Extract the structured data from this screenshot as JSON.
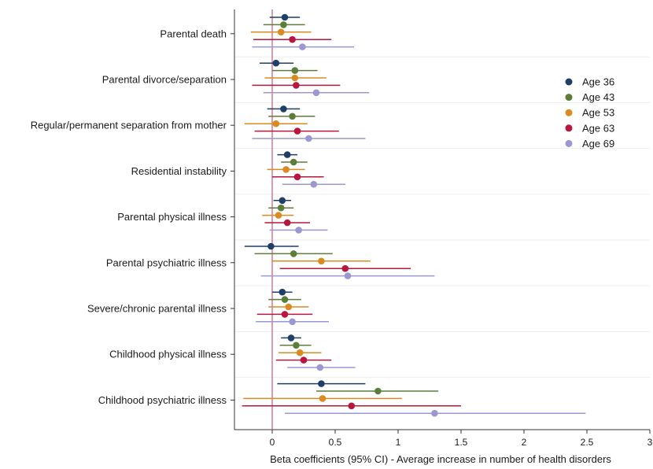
{
  "chart_data": {
    "type": "scatter",
    "title": "",
    "xlabel": "Beta coefficients (95% CI) - Average increase in number of health disorders",
    "ylabel": "",
    "xlim": [
      -0.3,
      3.0
    ],
    "xticks": [
      0,
      0.5,
      1,
      1.5,
      2,
      2.5,
      3
    ],
    "xtick_labels": [
      "0",
      "0.5",
      "1",
      "1.5",
      "2",
      "2.5",
      "3"
    ],
    "reference_line_x": 0,
    "reference_line_color": "#c9587e",
    "grid": false,
    "legend_position": "right",
    "categories": [
      "Parental death",
      "Parental divorce/separation",
      "Regular/permanent separation from mother",
      "Residential instability",
      "Parental physical illness",
      "Parental psychiatric illness",
      "Severe/chronic parental illness",
      "Childhood physical illness",
      "Childhood psychiatric illness"
    ],
    "series": [
      {
        "name": "Age 36",
        "color": "#1f3f68",
        "estimates": [
          0.1,
          0.03,
          0.09,
          0.12,
          0.08,
          -0.01,
          0.08,
          0.15,
          0.39
        ],
        "ci_low": [
          -0.02,
          -0.1,
          -0.04,
          0.04,
          0.01,
          -0.22,
          0.0,
          0.07,
          0.04
        ],
        "ci_high": [
          0.22,
          0.17,
          0.22,
          0.2,
          0.15,
          0.21,
          0.16,
          0.23,
          0.74
        ]
      },
      {
        "name": "Age 43",
        "color": "#5d7d3a",
        "estimates": [
          0.09,
          0.18,
          0.16,
          0.17,
          0.07,
          0.17,
          0.1,
          0.19,
          0.84
        ],
        "ci_low": [
          -0.07,
          0.0,
          -0.03,
          0.07,
          -0.03,
          -0.14,
          -0.03,
          0.06,
          0.35
        ],
        "ci_high": [
          0.26,
          0.36,
          0.34,
          0.28,
          0.17,
          0.48,
          0.23,
          0.31,
          1.32
        ]
      },
      {
        "name": "Age 53",
        "color": "#d98b22",
        "estimates": [
          0.07,
          0.18,
          0.03,
          0.11,
          0.05,
          0.39,
          0.13,
          0.22,
          0.4
        ],
        "ci_low": [
          -0.17,
          -0.06,
          -0.22,
          -0.04,
          -0.08,
          0.0,
          -0.03,
          0.05,
          -0.23
        ],
        "ci_high": [
          0.31,
          0.43,
          0.28,
          0.26,
          0.17,
          0.78,
          0.29,
          0.39,
          1.03
        ]
      },
      {
        "name": "Age 63",
        "color": "#b8163e",
        "estimates": [
          0.16,
          0.19,
          0.2,
          0.2,
          0.12,
          0.58,
          0.1,
          0.25,
          0.63
        ],
        "ci_low": [
          -0.15,
          -0.16,
          -0.14,
          0.0,
          -0.06,
          0.06,
          -0.12,
          0.03,
          -0.24
        ],
        "ci_high": [
          0.47,
          0.54,
          0.53,
          0.41,
          0.3,
          1.1,
          0.32,
          0.47,
          1.5
        ]
      },
      {
        "name": "Age 69",
        "color": "#9b97d3",
        "estimates": [
          0.24,
          0.35,
          0.29,
          0.33,
          0.21,
          0.6,
          0.16,
          0.38,
          1.29
        ],
        "ci_low": [
          -0.16,
          -0.07,
          -0.16,
          0.08,
          -0.02,
          -0.09,
          -0.13,
          0.12,
          0.1
        ],
        "ci_high": [
          0.65,
          0.77,
          0.74,
          0.58,
          0.44,
          1.29,
          0.45,
          0.66,
          2.49
        ]
      }
    ]
  }
}
